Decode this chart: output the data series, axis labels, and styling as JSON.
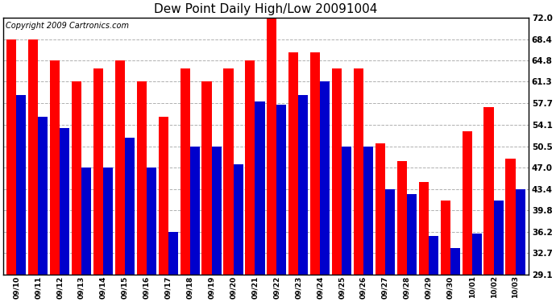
{
  "title": "Dew Point Daily High/Low 20091004",
  "copyright": "Copyright 2009 Cartronics.com",
  "categories": [
    "09/10",
    "09/11",
    "09/12",
    "09/13",
    "09/14",
    "09/15",
    "09/16",
    "09/17",
    "09/18",
    "09/19",
    "09/20",
    "09/21",
    "09/22",
    "09/23",
    "09/24",
    "09/25",
    "09/26",
    "09/27",
    "09/28",
    "09/29",
    "09/30",
    "10/01",
    "10/02",
    "10/03"
  ],
  "highs": [
    68.4,
    68.4,
    64.8,
    61.3,
    63.5,
    64.8,
    61.3,
    55.5,
    63.5,
    61.3,
    63.5,
    64.8,
    72.0,
    66.2,
    66.2,
    63.5,
    63.5,
    51.0,
    48.0,
    44.5,
    41.5,
    53.0,
    57.0,
    48.5
  ],
  "lows": [
    59.0,
    55.5,
    53.5,
    47.0,
    47.0,
    52.0,
    47.0,
    36.2,
    50.5,
    50.5,
    47.5,
    58.0,
    57.5,
    59.0,
    61.3,
    50.5,
    50.5,
    43.4,
    42.5,
    35.5,
    33.5,
    36.0,
    41.5,
    43.4
  ],
  "high_color": "#ff0000",
  "low_color": "#0000cc",
  "background_color": "#ffffff",
  "grid_color": "#b0b0b0",
  "yticks": [
    29.1,
    32.7,
    36.2,
    39.8,
    43.4,
    47.0,
    50.5,
    54.1,
    57.7,
    61.3,
    64.8,
    68.4,
    72.0
  ],
  "ymin": 29.1,
  "ymax": 72.0,
  "title_fontsize": 11,
  "copyright_fontsize": 7,
  "bar_width": 0.45,
  "fig_width": 6.9,
  "fig_height": 3.75,
  "dpi": 100
}
